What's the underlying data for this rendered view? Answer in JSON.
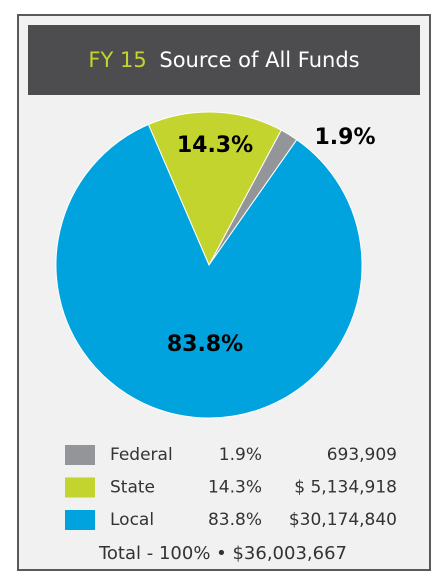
{
  "chart_data": {
    "type": "pie",
    "title_highlight": "FY 15",
    "title": "Source of All Funds",
    "categories": [
      "Federal",
      "State",
      "Local"
    ],
    "values": [
      1.9,
      14.3,
      83.8
    ],
    "value_labels": [
      "1.9%",
      "14.3%",
      "83.8%"
    ],
    "amounts": [
      693909,
      5134918,
      30174840
    ],
    "amount_labels": [
      "693,909",
      "$ 5,134,918",
      "$30,174,840"
    ],
    "colors": [
      "#939598",
      "#c4d42f",
      "#00a3de"
    ],
    "total": "Total - 100% • $36,003,667"
  }
}
